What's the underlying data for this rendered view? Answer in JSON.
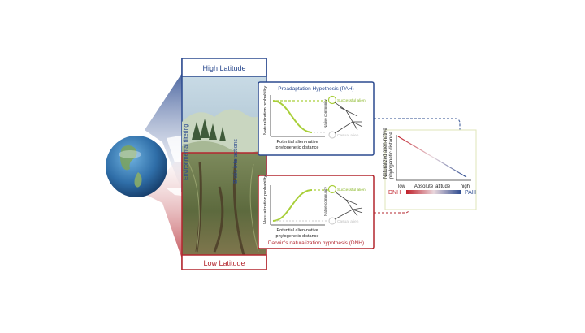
{
  "panels": {
    "high_latitude": {
      "title": "High Latitude",
      "color": "#2b4a8f"
    },
    "low_latitude": {
      "title": "Low Latitude",
      "color": "#b3262e"
    }
  },
  "side_labels": {
    "environmental_filtering": "Environmental filtering",
    "biotic_interactions": "Biotic interactions"
  },
  "pah": {
    "title": "Preadaptation Hypothesis (PAH)",
    "ylabel": "Naturalization probability",
    "xlabel_line1": "Potential alien-native",
    "xlabel_line2": "phylogenetic distance",
    "successful": "Successful alien",
    "casual": "Casual alien",
    "native": "Native community",
    "curve_color": "#a9cf3a"
  },
  "dnh": {
    "title": "Darwin's naturalization hypothesis (DNH)",
    "ylabel": "Naturalization probability",
    "xlabel_line1": "Potential alien-native",
    "xlabel_line2": "phylogenetic distance",
    "successful": "Successful alien",
    "casual": "Casual alien",
    "native": "Native community",
    "curve_color": "#a9cf3a"
  },
  "summary": {
    "ylabel_line1": "Naturalized alien-native",
    "ylabel_line2": "phylogenetic distance",
    "xlabel": "Absolute latitude",
    "low": "low",
    "high": "high",
    "left_tag": "DNH",
    "right_tag": "PAH",
    "low_color": "#c0202a",
    "high_color": "#2b4a8f"
  }
}
